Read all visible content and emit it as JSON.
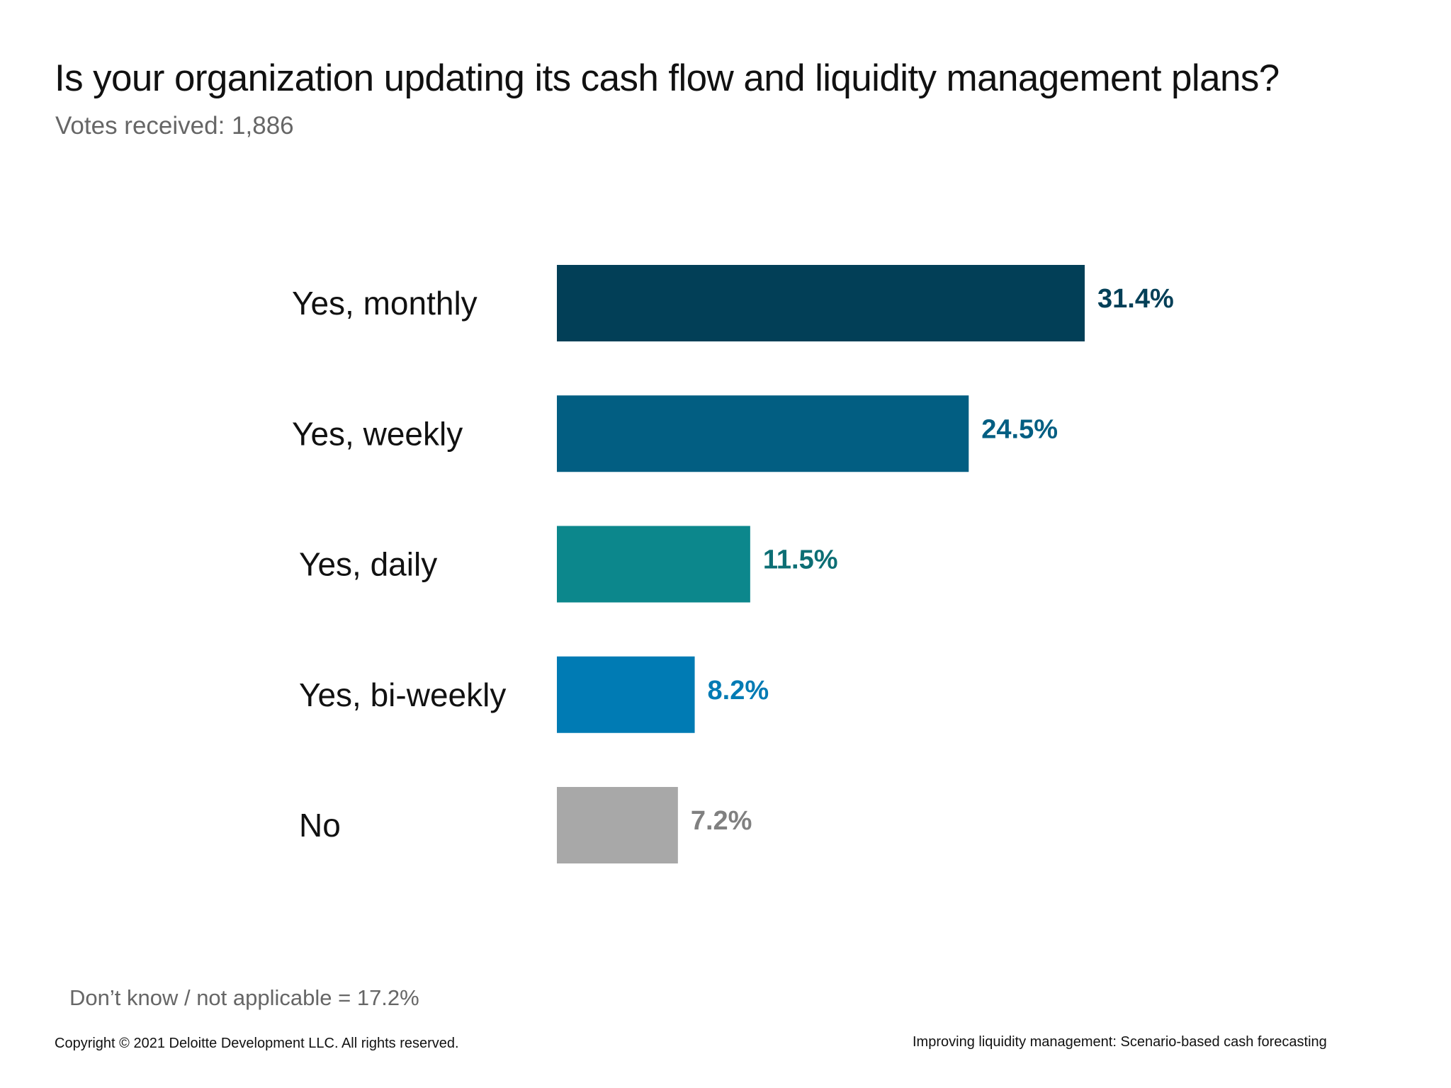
{
  "header": {
    "title": "Is your organization updating its cash flow and liquidity management plans?",
    "subtitle": "Votes received: 1,886"
  },
  "footnote": {
    "note": "Don’t know / not applicable = 17.2%",
    "copyright": "Copyright © 2021 Deloitte Development LLC. All rights reserved.",
    "source": "Improving liquidity management: Scenario-based cash forecasting"
  },
  "chart_data": {
    "type": "bar",
    "orientation": "horizontal",
    "title": "Is your organization updating its cash flow and liquidity management plans?",
    "subtitle": "Votes received: 1,886",
    "categories": [
      "Yes, monthly",
      "Yes, weekly",
      "Yes, daily",
      "Yes, bi-weekly",
      "No"
    ],
    "values": [
      31.4,
      24.5,
      11.5,
      8.2,
      7.2
    ],
    "value_labels": [
      "31.4%",
      "24.5%",
      "11.5%",
      "8.2%",
      "7.2%"
    ],
    "bar_colors": [
      "#023f57",
      "#025e82",
      "#0c878c",
      "#007bb4",
      "#a8a8a8"
    ],
    "label_colors": [
      "#023f57",
      "#025e82",
      "#0c6e74",
      "#007bb4",
      "#808080"
    ],
    "unit": "%",
    "xlim": [
      0,
      31.4
    ],
    "grid": false,
    "legend": "none"
  }
}
